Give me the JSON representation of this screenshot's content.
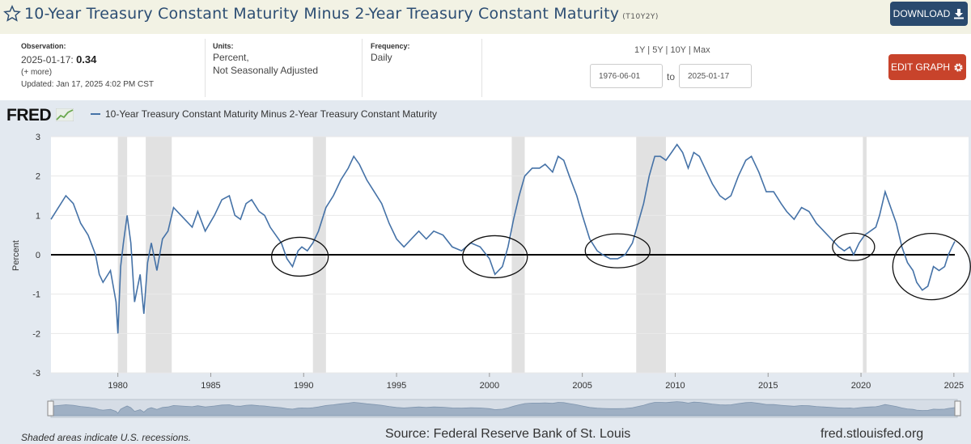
{
  "header": {
    "title": "10-Year Treasury Constant Maturity Minus 2-Year Treasury Constant Maturity",
    "series_id": "(T10Y2Y)",
    "download_label": "DOWNLOAD"
  },
  "info": {
    "observation_label": "Observation:",
    "observation_date": "2025-01-17:",
    "observation_value": "0.34",
    "more_label": "(+ more)",
    "updated": "Updated: Jan 17, 2025 4:02 PM CST",
    "units_label": "Units:",
    "units_line1": "Percent,",
    "units_line2": "Not Seasonally Adjusted",
    "frequency_label": "Frequency:",
    "frequency_value": "Daily",
    "range_links": "1Y | 5Y | 10Y | Max",
    "start_date": "1976-06-01",
    "to_label": "to",
    "end_date": "2025-01-17",
    "edit_label": "EDIT GRAPH"
  },
  "footer": {
    "recession_note": "Shaded areas indicate U.S. recessions.",
    "source": "Source: Federal Reserve Bank of St. Louis",
    "url": "fred.stlouisfed.org"
  },
  "colors": {
    "line": "#4572a7",
    "recession": "#e1e1e1",
    "title": "#2d4e73",
    "download": "#2a4a6e",
    "edit": "#c8432b"
  },
  "chart_data": {
    "type": "line",
    "logo": "FRED",
    "series": [
      {
        "name": "10-Year Treasury Constant Maturity Minus 2-Year Treasury Constant Maturity",
        "points": [
          [
            1976.4,
            0.9
          ],
          [
            1976.8,
            1.2
          ],
          [
            1977.2,
            1.5
          ],
          [
            1977.6,
            1.3
          ],
          [
            1978.0,
            0.8
          ],
          [
            1978.4,
            0.5
          ],
          [
            1978.8,
            0.0
          ],
          [
            1979.0,
            -0.5
          ],
          [
            1979.2,
            -0.7
          ],
          [
            1979.6,
            -0.4
          ],
          [
            1979.9,
            -1.2
          ],
          [
            1980.0,
            -2.0
          ],
          [
            1980.15,
            -0.3
          ],
          [
            1980.3,
            0.3
          ],
          [
            1980.5,
            1.0
          ],
          [
            1980.7,
            0.3
          ],
          [
            1980.9,
            -1.2
          ],
          [
            1981.2,
            -0.5
          ],
          [
            1981.4,
            -1.5
          ],
          [
            1981.6,
            -0.2
          ],
          [
            1981.8,
            0.3
          ],
          [
            1982.1,
            -0.4
          ],
          [
            1982.4,
            0.4
          ],
          [
            1982.7,
            0.6
          ],
          [
            1983.0,
            1.2
          ],
          [
            1983.4,
            1.0
          ],
          [
            1984.0,
            0.7
          ],
          [
            1984.3,
            1.1
          ],
          [
            1984.7,
            0.6
          ],
          [
            1985.2,
            1.0
          ],
          [
            1985.6,
            1.4
          ],
          [
            1986.0,
            1.5
          ],
          [
            1986.3,
            1.0
          ],
          [
            1986.6,
            0.9
          ],
          [
            1986.9,
            1.3
          ],
          [
            1987.2,
            1.4
          ],
          [
            1987.6,
            1.1
          ],
          [
            1987.9,
            1.0
          ],
          [
            1988.2,
            0.7
          ],
          [
            1988.5,
            0.5
          ],
          [
            1988.8,
            0.3
          ],
          [
            1989.1,
            -0.1
          ],
          [
            1989.4,
            -0.3
          ],
          [
            1989.7,
            0.1
          ],
          [
            1989.9,
            0.2
          ],
          [
            1990.2,
            0.1
          ],
          [
            1990.5,
            0.3
          ],
          [
            1990.8,
            0.6
          ],
          [
            1991.2,
            1.2
          ],
          [
            1991.6,
            1.5
          ],
          [
            1992.0,
            1.9
          ],
          [
            1992.4,
            2.2
          ],
          [
            1992.7,
            2.5
          ],
          [
            1993.0,
            2.3
          ],
          [
            1993.4,
            1.9
          ],
          [
            1993.8,
            1.6
          ],
          [
            1994.2,
            1.3
          ],
          [
            1994.6,
            0.8
          ],
          [
            1995.0,
            0.4
          ],
          [
            1995.4,
            0.2
          ],
          [
            1995.8,
            0.4
          ],
          [
            1996.2,
            0.6
          ],
          [
            1996.6,
            0.4
          ],
          [
            1997.0,
            0.6
          ],
          [
            1997.5,
            0.5
          ],
          [
            1998.0,
            0.2
          ],
          [
            1998.5,
            0.1
          ],
          [
            1999.0,
            0.3
          ],
          [
            1999.5,
            0.2
          ],
          [
            2000.0,
            -0.1
          ],
          [
            2000.3,
            -0.5
          ],
          [
            2000.7,
            -0.3
          ],
          [
            2001.0,
            0.2
          ],
          [
            2001.3,
            0.9
          ],
          [
            2001.6,
            1.5
          ],
          [
            2001.9,
            2.0
          ],
          [
            2002.3,
            2.2
          ],
          [
            2002.7,
            2.2
          ],
          [
            2003.0,
            2.3
          ],
          [
            2003.4,
            2.1
          ],
          [
            2003.7,
            2.5
          ],
          [
            2004.0,
            2.4
          ],
          [
            2004.3,
            2.0
          ],
          [
            2004.7,
            1.5
          ],
          [
            2005.0,
            1.0
          ],
          [
            2005.4,
            0.4
          ],
          [
            2005.8,
            0.1
          ],
          [
            2006.1,
            0.0
          ],
          [
            2006.5,
            -0.1
          ],
          [
            2006.9,
            -0.1
          ],
          [
            2007.3,
            0.0
          ],
          [
            2007.7,
            0.3
          ],
          [
            2008.0,
            0.8
          ],
          [
            2008.3,
            1.3
          ],
          [
            2008.6,
            2.0
          ],
          [
            2008.9,
            2.5
          ],
          [
            2009.2,
            2.5
          ],
          [
            2009.5,
            2.4
          ],
          [
            2009.8,
            2.6
          ],
          [
            2010.1,
            2.8
          ],
          [
            2010.4,
            2.6
          ],
          [
            2010.7,
            2.2
          ],
          [
            2011.0,
            2.6
          ],
          [
            2011.3,
            2.5
          ],
          [
            2011.7,
            2.1
          ],
          [
            2012.0,
            1.8
          ],
          [
            2012.4,
            1.5
          ],
          [
            2012.7,
            1.4
          ],
          [
            2013.0,
            1.5
          ],
          [
            2013.4,
            2.0
          ],
          [
            2013.8,
            2.4
          ],
          [
            2014.1,
            2.5
          ],
          [
            2014.5,
            2.1
          ],
          [
            2014.9,
            1.6
          ],
          [
            2015.3,
            1.6
          ],
          [
            2015.7,
            1.3
          ],
          [
            2016.0,
            1.1
          ],
          [
            2016.4,
            0.9
          ],
          [
            2016.8,
            1.2
          ],
          [
            2017.2,
            1.1
          ],
          [
            2017.6,
            0.8
          ],
          [
            2018.0,
            0.6
          ],
          [
            2018.4,
            0.4
          ],
          [
            2018.8,
            0.2
          ],
          [
            2019.1,
            0.1
          ],
          [
            2019.4,
            0.2
          ],
          [
            2019.6,
            0.0
          ],
          [
            2019.9,
            0.3
          ],
          [
            2020.2,
            0.5
          ],
          [
            2020.5,
            0.6
          ],
          [
            2020.8,
            0.7
          ],
          [
            2021.0,
            1.0
          ],
          [
            2021.3,
            1.6
          ],
          [
            2021.6,
            1.2
          ],
          [
            2021.9,
            0.8
          ],
          [
            2022.2,
            0.2
          ],
          [
            2022.5,
            -0.2
          ],
          [
            2022.8,
            -0.4
          ],
          [
            2023.0,
            -0.7
          ],
          [
            2023.3,
            -0.9
          ],
          [
            2023.6,
            -0.8
          ],
          [
            2023.9,
            -0.3
          ],
          [
            2024.2,
            -0.4
          ],
          [
            2024.5,
            -0.3
          ],
          [
            2024.7,
            0.0
          ],
          [
            2024.9,
            0.2
          ],
          [
            2025.05,
            0.34
          ]
        ]
      }
    ],
    "recessions": [
      [
        1980.0,
        1980.5
      ],
      [
        1981.5,
        1982.9
      ],
      [
        1990.5,
        1991.2
      ],
      [
        2001.2,
        2001.9
      ],
      [
        2007.9,
        2009.5
      ],
      [
        2020.1,
        2020.3
      ]
    ],
    "xlim": [
      1976.4,
      2025.05
    ],
    "ylim": [
      -3,
      3
    ],
    "x_ticks": [
      "1980",
      "1985",
      "1990",
      "1995",
      "2000",
      "2005",
      "2010",
      "2015",
      "2020",
      "2025"
    ],
    "y_ticks": [
      "3",
      "2",
      "1",
      "0",
      "-1",
      "-2",
      "-3"
    ],
    "ylabel": "Percent",
    "grid": "horizontal",
    "legend_placement": "top-left",
    "annotations": [
      {
        "type": "hand-drawn-circle",
        "x_center": 1989.8,
        "y_center": -0.05
      },
      {
        "type": "hand-drawn-circle",
        "x_center": 2000.3,
        "y_center": -0.05
      },
      {
        "type": "hand-drawn-circle",
        "x_center": 2006.9,
        "y_center": 0.1
      },
      {
        "type": "hand-drawn-circle",
        "x_center": 2019.6,
        "y_center": 0.2
      },
      {
        "type": "hand-drawn-circle",
        "x_center": 2023.8,
        "y_center": -0.3
      }
    ]
  }
}
